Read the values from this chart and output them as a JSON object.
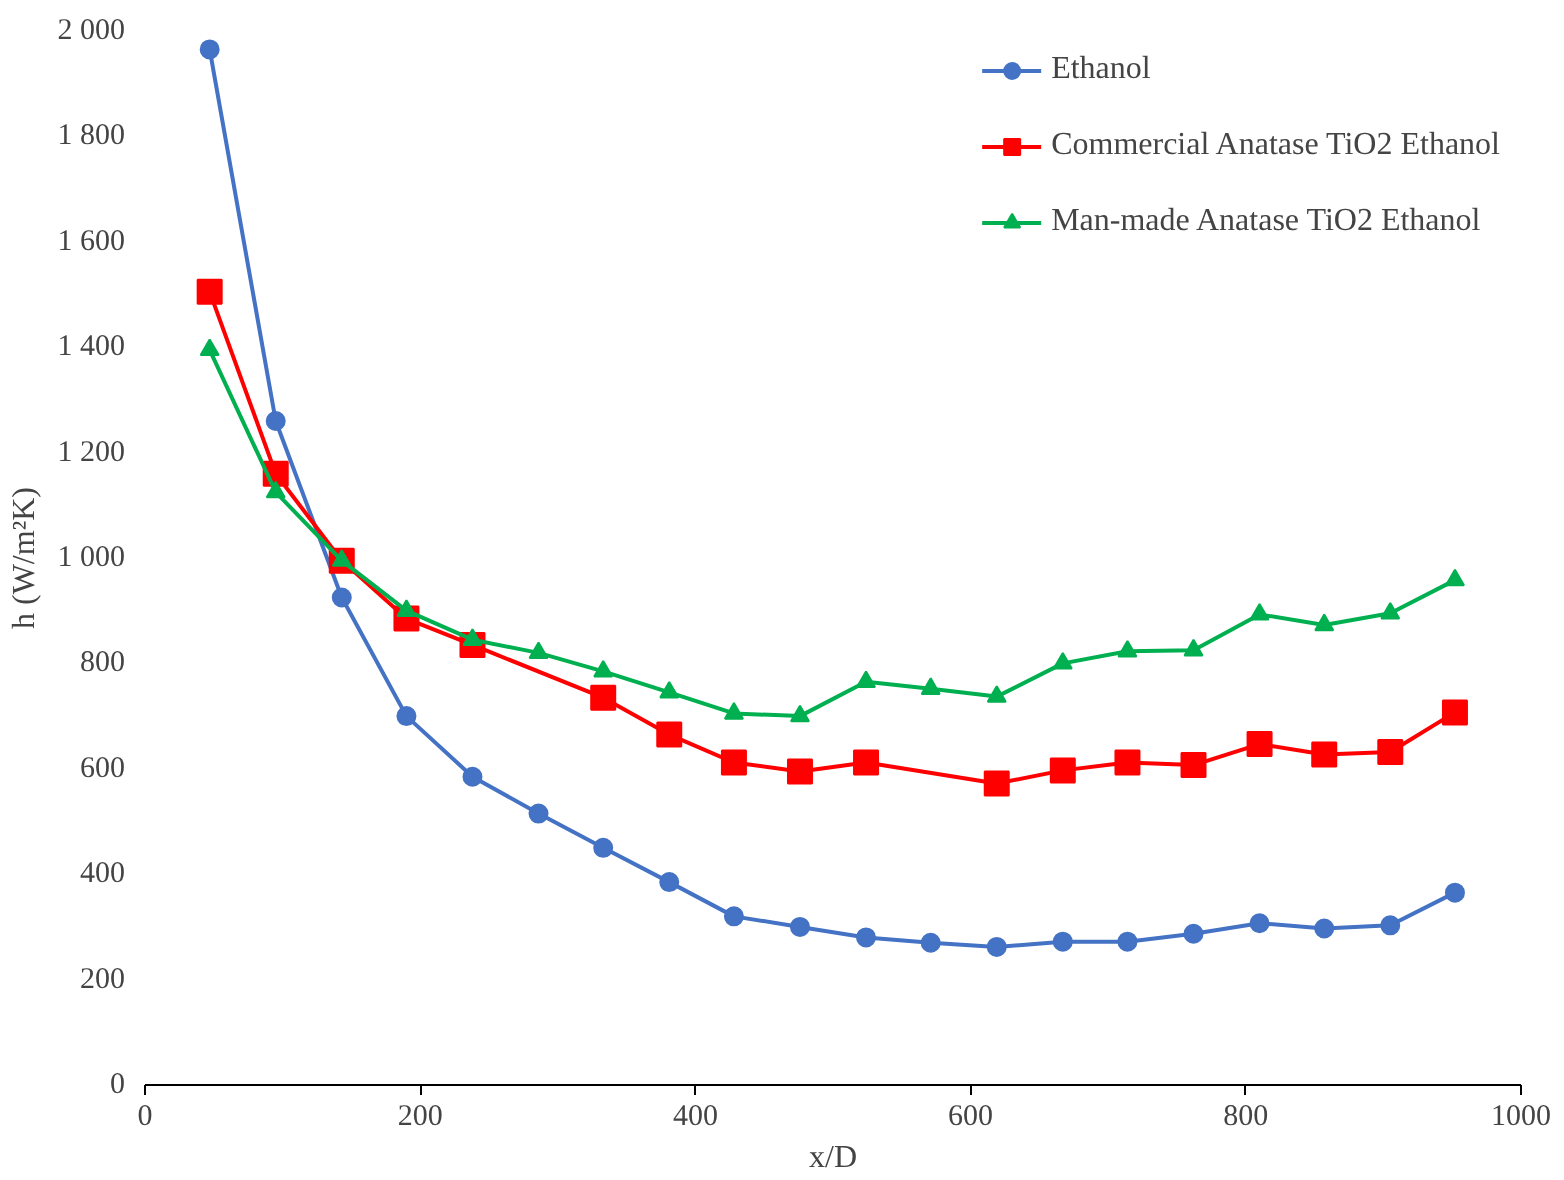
{
  "chart_data": {
    "type": "line",
    "xlabel": "x/D",
    "ylabel": "h (W/m²K)",
    "xlim": [
      0,
      1000
    ],
    "xticks": [
      0,
      200,
      400,
      600,
      800,
      1000
    ],
    "ylim": [
      0,
      2000
    ],
    "yticks": [
      0,
      200,
      400,
      600,
      800,
      {
        "value": 1000,
        "label": "1 000"
      },
      {
        "value": 1200,
        "label": "1 200"
      },
      {
        "value": 1400,
        "label": "1 400"
      },
      {
        "value": 1600,
        "label": "1 600"
      },
      {
        "value": 1800,
        "label": "1 800"
      },
      {
        "value": 2000,
        "label": "2 000"
      }
    ],
    "grid": false,
    "legend": "top right",
    "series": [
      {
        "name": "Ethanol",
        "color": "#4472c4",
        "marker": "circle",
        "x": [
          47,
          95,
          143,
          190,
          238,
          286,
          333,
          381,
          428,
          476,
          524,
          571,
          619,
          667,
          714,
          762,
          810,
          857,
          905,
          952
        ],
        "values": [
          1965,
          1260,
          925,
          700,
          585,
          515,
          450,
          385,
          320,
          300,
          280,
          270,
          262,
          272,
          272,
          287,
          307,
          297,
          303,
          365
        ]
      },
      {
        "name": "Commercial Anatase TiO2 Ethanol",
        "color": "#ff0000",
        "marker": "square",
        "x": [
          47,
          95,
          143,
          190,
          238,
          333,
          381,
          428,
          476,
          524,
          619,
          667,
          714,
          762,
          810,
          857,
          905,
          952
        ],
        "values": [
          1505,
          1160,
          995,
          885,
          835,
          735,
          665,
          612,
          595,
          612,
          572,
          597,
          612,
          607,
          647,
          627,
          632,
          707
        ]
      },
      {
        "name": "Man-made Anatase TiO2 Ethanol",
        "color": "#00b050",
        "marker": "triangle",
        "x": [
          47,
          95,
          143,
          190,
          238,
          286,
          333,
          381,
          428,
          476,
          524,
          571,
          619,
          667,
          714,
          762,
          810,
          857,
          905,
          952
        ],
        "values": [
          1395,
          1125,
          995,
          900,
          845,
          820,
          785,
          745,
          705,
          700,
          765,
          752,
          737,
          800,
          823,
          825,
          893,
          873,
          895,
          958
        ]
      }
    ]
  }
}
